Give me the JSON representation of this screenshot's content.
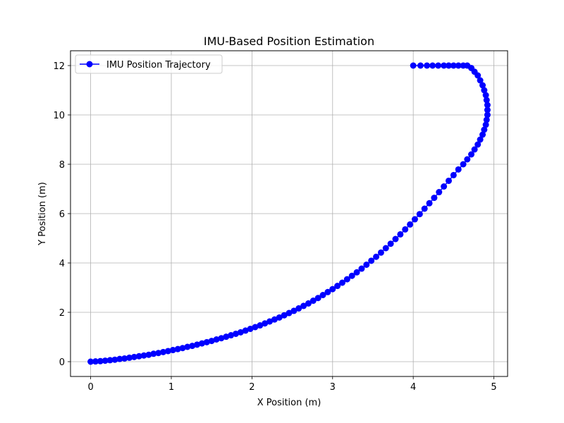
{
  "chart_data": {
    "type": "line",
    "title": "IMU-Based Position Estimation",
    "xlabel": "X Position (m)",
    "ylabel": "Y Position (m)",
    "xlim": [
      -0.25,
      5.17
    ],
    "ylim": [
      -0.6,
      12.6
    ],
    "xticks": [
      0,
      1,
      2,
      3,
      4,
      5
    ],
    "yticks": [
      0,
      2,
      4,
      6,
      8,
      10,
      12
    ],
    "grid": true,
    "legend_position": "top-left",
    "series": [
      {
        "name": "IMU Position Trajectory",
        "color": "#0000ff",
        "marker": "circle",
        "curve": {
          "x": "4.0 * t * (3 - t) / 2.25 * 0.98 + 0.0 (parametric, t in [0,3])",
          "points_count": 200
        },
        "x": [
          0.0,
          0.06,
          0.12,
          0.18,
          0.24,
          0.3,
          0.36,
          0.42,
          0.48,
          0.54,
          0.6,
          0.66,
          0.72,
          0.78,
          0.84,
          0.9,
          0.96,
          1.02,
          1.08,
          1.14,
          1.2,
          1.26,
          1.32,
          1.38,
          1.44,
          1.5,
          1.56,
          1.62,
          1.68,
          1.74,
          1.8,
          1.86,
          1.92,
          1.98,
          2.04,
          2.1,
          2.16,
          2.22,
          2.28,
          2.34,
          2.4,
          2.46,
          2.52,
          2.58,
          2.64,
          2.7,
          2.76,
          2.82,
          2.88,
          2.94,
          3.0,
          3.06,
          3.12,
          3.18,
          3.24,
          3.3,
          3.36,
          3.42,
          3.48,
          3.54,
          3.6,
          3.66,
          3.72,
          3.78,
          3.84,
          3.9,
          3.96,
          4.02,
          4.08,
          4.14,
          4.2,
          4.26,
          4.32,
          4.38,
          4.44,
          4.5,
          4.56,
          4.62,
          4.67,
          4.72,
          4.76,
          4.8,
          4.83,
          4.86,
          4.88,
          4.9,
          4.91,
          4.92,
          4.92,
          4.92,
          4.91,
          4.9,
          4.88,
          4.86,
          4.83,
          4.8,
          4.76,
          4.72,
          4.67,
          4.62,
          4.56,
          4.5,
          4.44,
          4.38,
          4.31,
          4.24,
          4.17,
          4.09,
          4.0
        ],
        "y": [
          0.0,
          0.01,
          0.02,
          0.04,
          0.06,
          0.08,
          0.11,
          0.13,
          0.16,
          0.19,
          0.22,
          0.25,
          0.28,
          0.32,
          0.35,
          0.39,
          0.43,
          0.47,
          0.51,
          0.55,
          0.6,
          0.64,
          0.69,
          0.74,
          0.79,
          0.84,
          0.9,
          0.95,
          1.01,
          1.07,
          1.13,
          1.19,
          1.26,
          1.33,
          1.4,
          1.47,
          1.55,
          1.63,
          1.71,
          1.79,
          1.88,
          1.97,
          2.06,
          2.16,
          2.26,
          2.36,
          2.47,
          2.58,
          2.7,
          2.82,
          2.94,
          3.07,
          3.2,
          3.34,
          3.48,
          3.62,
          3.77,
          3.93,
          4.09,
          4.25,
          4.42,
          4.6,
          4.78,
          4.97,
          5.16,
          5.36,
          5.56,
          5.77,
          5.98,
          6.2,
          6.42,
          6.64,
          6.87,
          7.1,
          7.33,
          7.56,
          7.79,
          8.0,
          8.2,
          8.4,
          8.6,
          8.8,
          9.0,
          9.2,
          9.4,
          9.6,
          9.8,
          10.0,
          10.2,
          10.4,
          10.6,
          10.8,
          11.0,
          11.2,
          11.4,
          11.6,
          11.75,
          11.9,
          12.0,
          12.0,
          12.0,
          12.0,
          12.0,
          12.0,
          12.0,
          12.0,
          12.0,
          12.0,
          12.0
        ]
      }
    ]
  }
}
